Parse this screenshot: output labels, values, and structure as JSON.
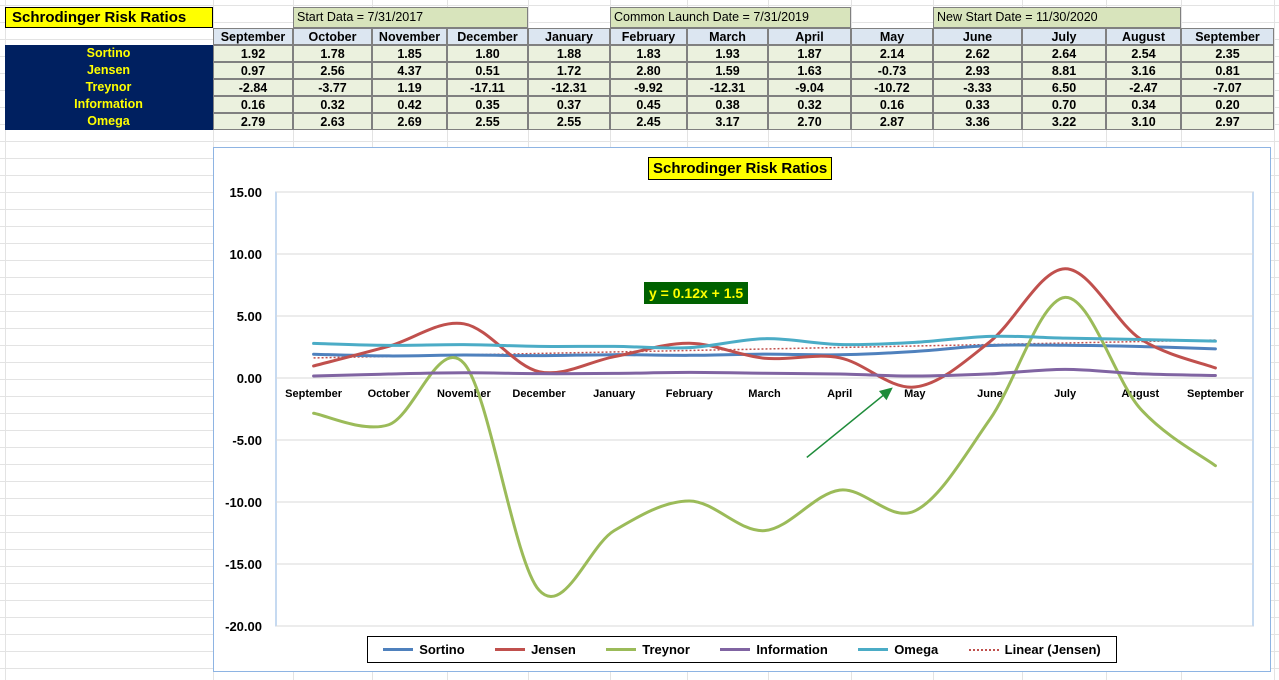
{
  "sheet": {
    "title": "Schrodinger Risk Ratios",
    "date_bands": [
      "Start Data = 7/31/2017",
      "Common Launch Date = 7/31/2019",
      "New Start Date = 11/30/2020"
    ],
    "months": [
      "September",
      "October",
      "November",
      "December",
      "January",
      "February",
      "March",
      "April",
      "May",
      "June",
      "July",
      "August",
      "September"
    ],
    "rows": [
      {
        "label": "Sortino",
        "values": [
          "1.92",
          "1.78",
          "1.85",
          "1.80",
          "1.88",
          "1.83",
          "1.93",
          "1.87",
          "2.14",
          "2.62",
          "2.64",
          "2.54",
          "2.35"
        ]
      },
      {
        "label": "Jensen",
        "values": [
          "0.97",
          "2.56",
          "4.37",
          "0.51",
          "1.72",
          "2.80",
          "1.59",
          "1.63",
          "-0.73",
          "2.93",
          "8.81",
          "3.16",
          "0.81"
        ]
      },
      {
        "label": "Treynor",
        "values": [
          "-2.84",
          "-3.77",
          "1.19",
          "-17.11",
          "-12.31",
          "-9.92",
          "-12.31",
          "-9.04",
          "-10.72",
          "-3.33",
          "6.50",
          "-2.47",
          "-7.07"
        ]
      },
      {
        "label": "Information",
        "values": [
          "0.16",
          "0.32",
          "0.42",
          "0.35",
          "0.37",
          "0.45",
          "0.38",
          "0.32",
          "0.16",
          "0.33",
          "0.70",
          "0.34",
          "0.20"
        ]
      },
      {
        "label": "Omega",
        "values": [
          "2.79",
          "2.63",
          "2.69",
          "2.55",
          "2.55",
          "2.45",
          "3.17",
          "2.70",
          "2.87",
          "3.36",
          "3.22",
          "3.10",
          "2.97"
        ]
      }
    ]
  },
  "chart": {
    "title": "Schrodinger Risk Ratios",
    "trendline_label": "y = 0.12x + 1.5",
    "legend": [
      "Sortino",
      "Jensen",
      "Treynor",
      "Information",
      "Omega",
      "Linear (Jensen)"
    ]
  },
  "chart_data": {
    "type": "line",
    "title": "Schrodinger Risk Ratios",
    "categories": [
      "September",
      "October",
      "November",
      "December",
      "January",
      "February",
      "March",
      "April",
      "May",
      "June",
      "July",
      "August",
      "September"
    ],
    "ylim": [
      -20,
      15
    ],
    "yticks": [
      "15.00",
      "10.00",
      "5.00",
      "0.00",
      "-5.00",
      "-10.00",
      "-15.00",
      "-20.00"
    ],
    "grid": true,
    "legend_position": "bottom",
    "series": [
      {
        "name": "Sortino",
        "color": "#4f81bd",
        "values": [
          1.92,
          1.78,
          1.85,
          1.8,
          1.88,
          1.83,
          1.93,
          1.87,
          2.14,
          2.62,
          2.64,
          2.54,
          2.35
        ]
      },
      {
        "name": "Jensen",
        "color": "#c0504d",
        "values": [
          0.97,
          2.56,
          4.37,
          0.51,
          1.72,
          2.8,
          1.59,
          1.63,
          -0.73,
          2.93,
          8.81,
          3.16,
          0.81
        ]
      },
      {
        "name": "Treynor",
        "color": "#9bbb59",
        "values": [
          -2.84,
          -3.77,
          1.19,
          -17.11,
          -12.31,
          -9.92,
          -12.31,
          -9.04,
          -10.72,
          -3.33,
          6.5,
          -2.47,
          -7.07
        ]
      },
      {
        "name": "Information",
        "color": "#8064a2",
        "values": [
          0.16,
          0.32,
          0.42,
          0.35,
          0.37,
          0.45,
          0.38,
          0.32,
          0.16,
          0.33,
          0.7,
          0.34,
          0.2
        ]
      },
      {
        "name": "Omega",
        "color": "#4bacc6",
        "values": [
          2.79,
          2.63,
          2.69,
          2.55,
          2.55,
          2.45,
          3.17,
          2.7,
          2.87,
          3.36,
          3.22,
          3.1,
          2.97
        ]
      }
    ],
    "trendline": {
      "name": "Linear (Jensen)",
      "slope": 0.12,
      "intercept": 1.5,
      "color": "#c0504d"
    },
    "annotation": {
      "type": "arrow",
      "color": "#1e8c3a",
      "target": "May"
    }
  }
}
